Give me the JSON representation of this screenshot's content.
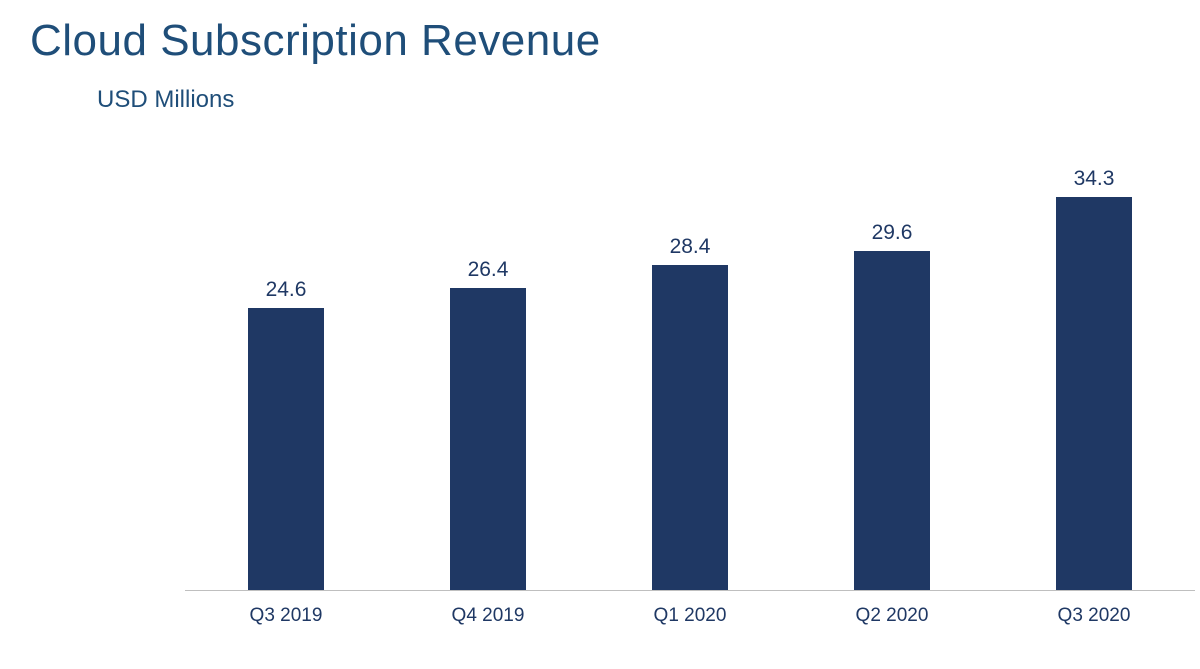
{
  "header": {
    "title": "Cloud Subscription Revenue",
    "subtitle": "USD Millions"
  },
  "colors": {
    "bar": "#1F3864",
    "title_text": "#1F4E79",
    "label_text": "#1F3864",
    "axis_line": "#BFBFBF",
    "background": "#FFFFFF"
  },
  "chart_data": {
    "type": "bar",
    "title": "Cloud Subscription Revenue",
    "subtitle": "USD Millions",
    "categories": [
      "Q3 2019",
      "Q4 2019",
      "Q1 2020",
      "Q2 2020",
      "Q3 2020"
    ],
    "values": [
      24.6,
      26.4,
      28.4,
      29.6,
      34.3
    ],
    "value_labels": [
      "24.6",
      "26.4",
      "28.4",
      "29.6",
      "34.3"
    ],
    "xlabel": "",
    "ylabel": "USD Millions",
    "ylim": [
      0,
      35
    ],
    "grid": false,
    "legend": false,
    "data_labels": "above bars",
    "axis_line": "bottom only"
  }
}
